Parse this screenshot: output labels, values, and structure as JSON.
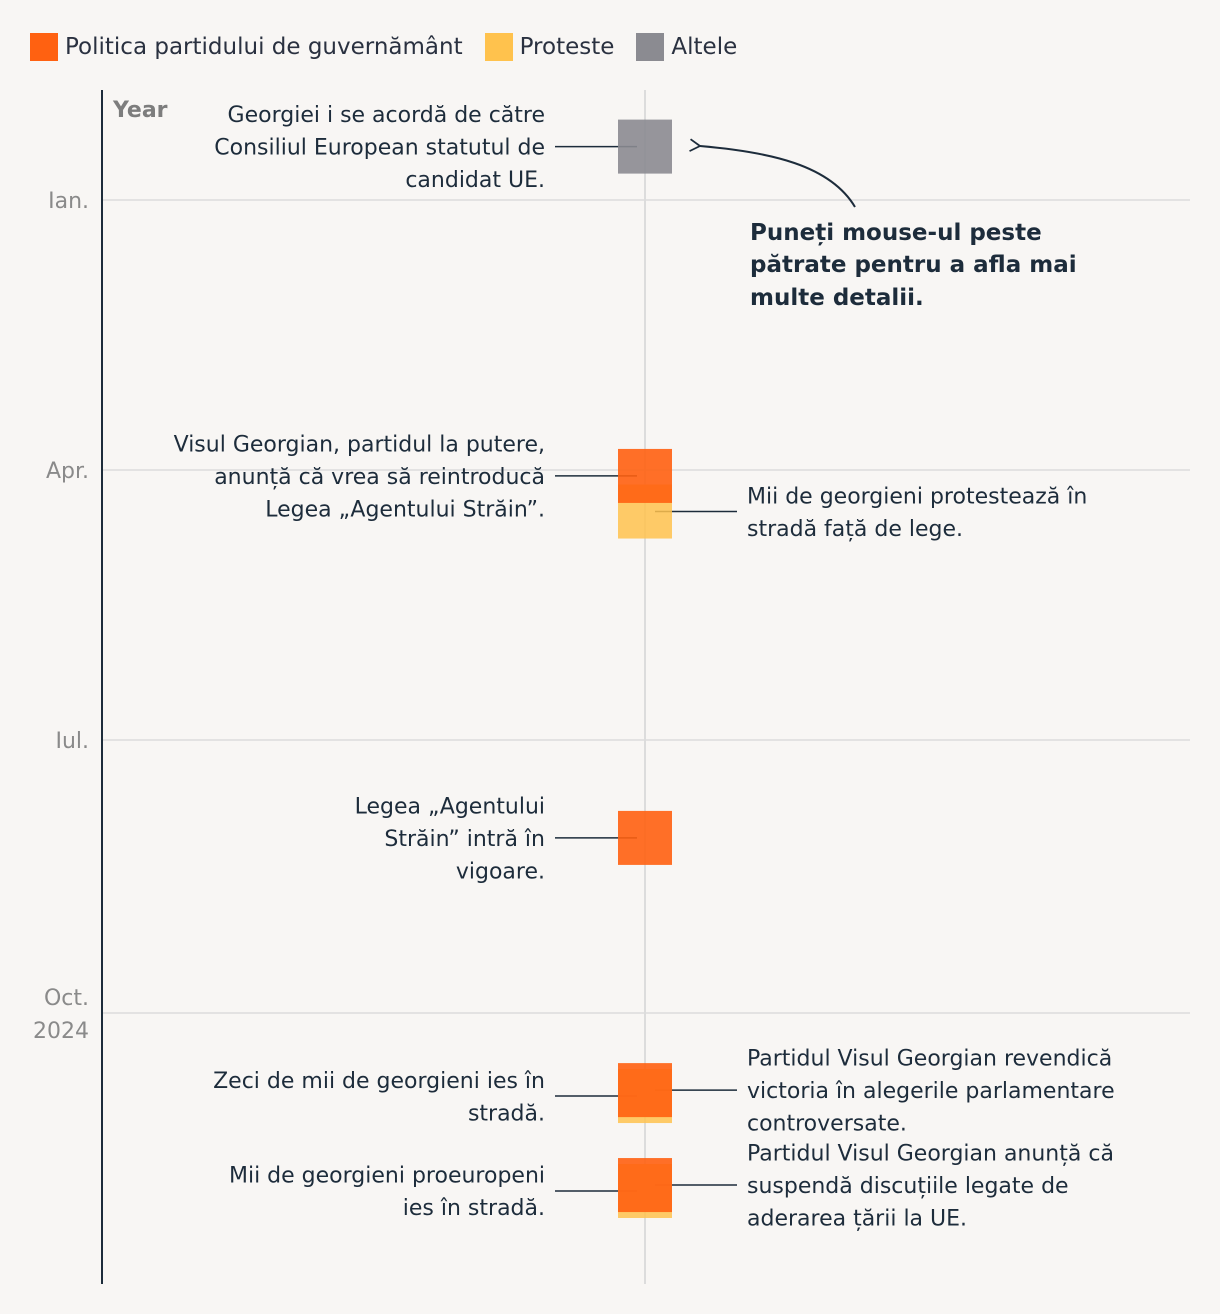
{
  "legend": [
    {
      "label": "Politica partidului de guvernământ",
      "color": "#ff6111"
    },
    {
      "label": "Proteste",
      "color": "#ffc24d"
    },
    {
      "label": "Altele",
      "color": "#8b8b91"
    }
  ],
  "hint": [
    "Puneți mouse-ul peste",
    "pătrate pentru a afla mai",
    "multe detalii."
  ],
  "chart_data": {
    "type": "timeline",
    "y_axis_title": "Year",
    "ticks": [
      {
        "date": "2024-01-01",
        "label": [
          "Ian."
        ]
      },
      {
        "date": "2024-04-01",
        "label": [
          "Apr."
        ]
      },
      {
        "date": "2024-07-01",
        "label": [
          "Iul."
        ]
      },
      {
        "date": "2024-10-01",
        "label": [
          "Oct.",
          "2024"
        ]
      }
    ],
    "events": [
      {
        "date": "2023-12-14",
        "category": "Altele",
        "side": "left",
        "text": [
          "Georgiei i se acordă de către",
          "Consiliul European statutul de",
          "candidat UE."
        ]
      },
      {
        "date": "2024-04-03",
        "category": "Politica partidului de guvernământ",
        "side": "left",
        "text": [
          "Visul Georgian, partidul la putere,",
          "anunță că vrea să reintroducă",
          "Legea „Agentului Străin”."
        ]
      },
      {
        "date": "2024-04-15",
        "category": "Proteste",
        "side": "right",
        "text": [
          "Mii de georgieni protestează în",
          "stradă față de lege."
        ]
      },
      {
        "date": "2024-08-03",
        "category": "Politica partidului de guvernământ",
        "side": "left",
        "text": [
          "Legea „Agentului",
          "Străin” intră în",
          "vigoare."
        ]
      },
      {
        "date": "2024-10-29",
        "category": "Proteste",
        "side": "left",
        "text": [
          "Zeci de mii de georgieni ies în",
          "stradă."
        ]
      },
      {
        "date": "2024-10-27",
        "category": "Politica partidului de guvernământ",
        "side": "right",
        "text": [
          "Partidul Visul Georgian revendică",
          "victoria în alegerile parlamentare",
          "controversate."
        ]
      },
      {
        "date": "2024-11-30",
        "category": "Proteste",
        "side": "left",
        "text": [
          "Mii de georgieni proeuropeni",
          "ies în stradă."
        ]
      },
      {
        "date": "2024-11-28",
        "category": "Politica partidului de guvernământ",
        "side": "right",
        "text": [
          "Partidul Visul Georgian anunță că",
          "suspendă discuțiile legate de",
          "aderarea țării la UE."
        ]
      }
    ]
  }
}
